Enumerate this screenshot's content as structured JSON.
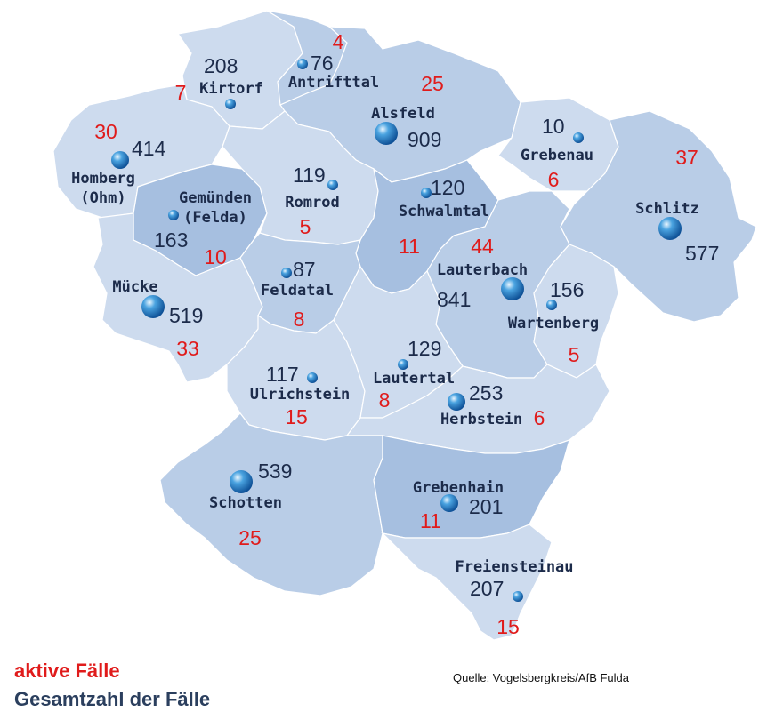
{
  "colors": {
    "light": "#cddbee",
    "mid": "#b9cde7",
    "dark": "#a6bfe0",
    "active_text": "#e01b1b",
    "total_text": "#1c2b4a"
  },
  "towns": [
    {
      "id": "kirtorf",
      "name": "Kirtorf",
      "total": "208",
      "active": "7",
      "marker": "small"
    },
    {
      "id": "antrifttal",
      "name": "Antrifttal",
      "total": "76",
      "active": "4",
      "marker": "small"
    },
    {
      "id": "alsfeld",
      "name": "Alsfeld",
      "total": "909",
      "active": "25",
      "marker": "large"
    },
    {
      "id": "grebenau",
      "name": "Grebenau",
      "total": "10",
      "active": "6",
      "marker": "small"
    },
    {
      "id": "schlitz",
      "name": "Schlitz",
      "total": "577",
      "active": "37",
      "marker": "large"
    },
    {
      "id": "homberg",
      "name": "Homberg",
      "name2": "(Ohm)",
      "total": "414",
      "active": "30",
      "marker": "medium"
    },
    {
      "id": "gemuenden",
      "name": "Gemünden",
      "name2": "(Felda)",
      "total": "163",
      "active": "10",
      "marker": "small"
    },
    {
      "id": "romrod",
      "name": "Romrod",
      "total": "119",
      "active": "5",
      "marker": "small"
    },
    {
      "id": "schwalmtal",
      "name": "Schwalmtal",
      "total": "120",
      "active": "11",
      "marker": "small"
    },
    {
      "id": "lauterbach",
      "name": "Lauterbach",
      "total": "841",
      "active": "44",
      "marker": "large"
    },
    {
      "id": "wartenberg",
      "name": "Wartenberg",
      "total": "156",
      "active": "5",
      "marker": "small"
    },
    {
      "id": "muecke",
      "name": "Mücke",
      "total": "519",
      "active": "33",
      "marker": "large"
    },
    {
      "id": "feldatal",
      "name": "Feldatal",
      "total": "87",
      "active": "8",
      "marker": "small"
    },
    {
      "id": "ulrichstein",
      "name": "Ulrichstein",
      "total": "117",
      "active": "15",
      "marker": "small"
    },
    {
      "id": "lautertal",
      "name": "Lautertal",
      "total": "129",
      "active": "8",
      "marker": "small"
    },
    {
      "id": "herbstein",
      "name": "Herbstein",
      "total": "253",
      "active": "6",
      "marker": "medium"
    },
    {
      "id": "schotten",
      "name": "Schotten",
      "total": "539",
      "active": "25",
      "marker": "large"
    },
    {
      "id": "grebenhain",
      "name": "Grebenhain",
      "total": "201",
      "active": "11",
      "marker": "medium"
    },
    {
      "id": "freiensteinau",
      "name": "Freiensteinau",
      "total": "207",
      "active": "15",
      "marker": "small"
    }
  ],
  "legend": {
    "active_label": "aktive Fälle",
    "total_label": "Gesamtzahl der Fälle"
  },
  "source": "Quelle: Vogelsbergkreis/AfB Fulda"
}
